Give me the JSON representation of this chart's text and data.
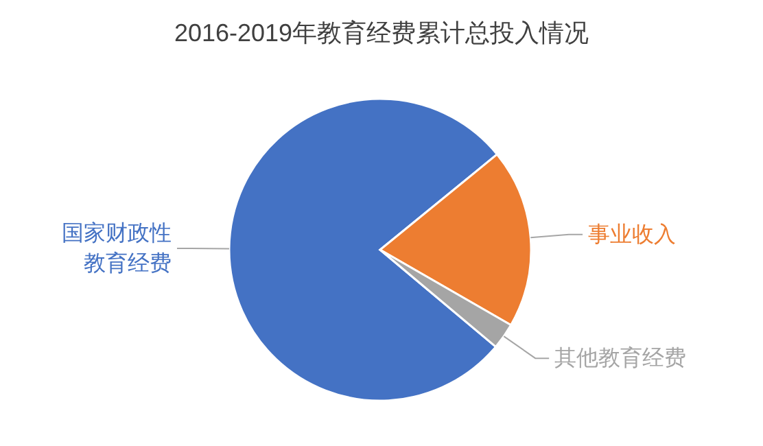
{
  "chart_data": {
    "type": "pie",
    "title": "2016-2019年教育经费累计总投入情况",
    "categories": [
      "国家财政性教育经费",
      "事业收入",
      "其他教育经费"
    ],
    "values": [
      78,
      19.2,
      2.8
    ],
    "colors": [
      "#4472c4",
      "#ed7d31",
      "#a5a5a5"
    ]
  }
}
